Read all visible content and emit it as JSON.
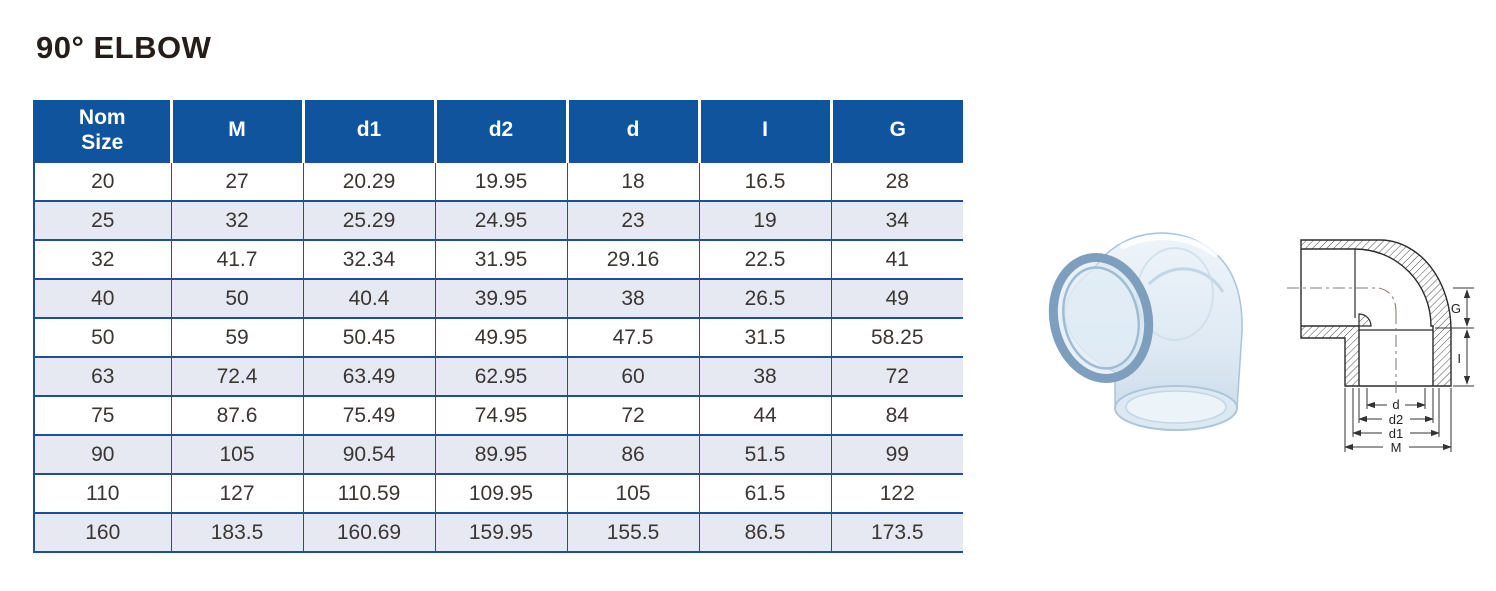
{
  "title": "90° ELBOW",
  "table": {
    "headers": [
      "Nom Size",
      "M",
      "d1",
      "d2",
      "d",
      "I",
      "G"
    ],
    "rows": [
      [
        "20",
        "27",
        "20.29",
        "19.95",
        "18",
        "16.5",
        "28"
      ],
      [
        "25",
        "32",
        "25.29",
        "24.95",
        "23",
        "19",
        "34"
      ],
      [
        "32",
        "41.7",
        "32.34",
        "31.95",
        "29.16",
        "22.5",
        "41"
      ],
      [
        "40",
        "50",
        "40.4",
        "39.95",
        "38",
        "26.5",
        "49"
      ],
      [
        "50",
        "59",
        "50.45",
        "49.95",
        "47.5",
        "31.5",
        "58.25"
      ],
      [
        "63",
        "72.4",
        "63.49",
        "62.95",
        "60",
        "38",
        "72"
      ],
      [
        "75",
        "87.6",
        "75.49",
        "74.95",
        "72",
        "44",
        "84"
      ],
      [
        "90",
        "105",
        "90.54",
        "89.95",
        "86",
        "51.5",
        "99"
      ],
      [
        "110",
        "127",
        "110.59",
        "109.95",
        "105",
        "61.5",
        "122"
      ],
      [
        "160",
        "183.5",
        "160.69",
        "159.95",
        "155.5",
        "86.5",
        "173.5"
      ]
    ]
  },
  "diagram": {
    "labels": {
      "g": "G",
      "i": "I",
      "d": "d",
      "d2": "d2",
      "d1": "d1",
      "m": "M"
    }
  },
  "colors": {
    "header_bg": "#10549e",
    "row_alt": "#e6e8f2",
    "grid": "#1d4f9c",
    "text": "#3b3533"
  }
}
